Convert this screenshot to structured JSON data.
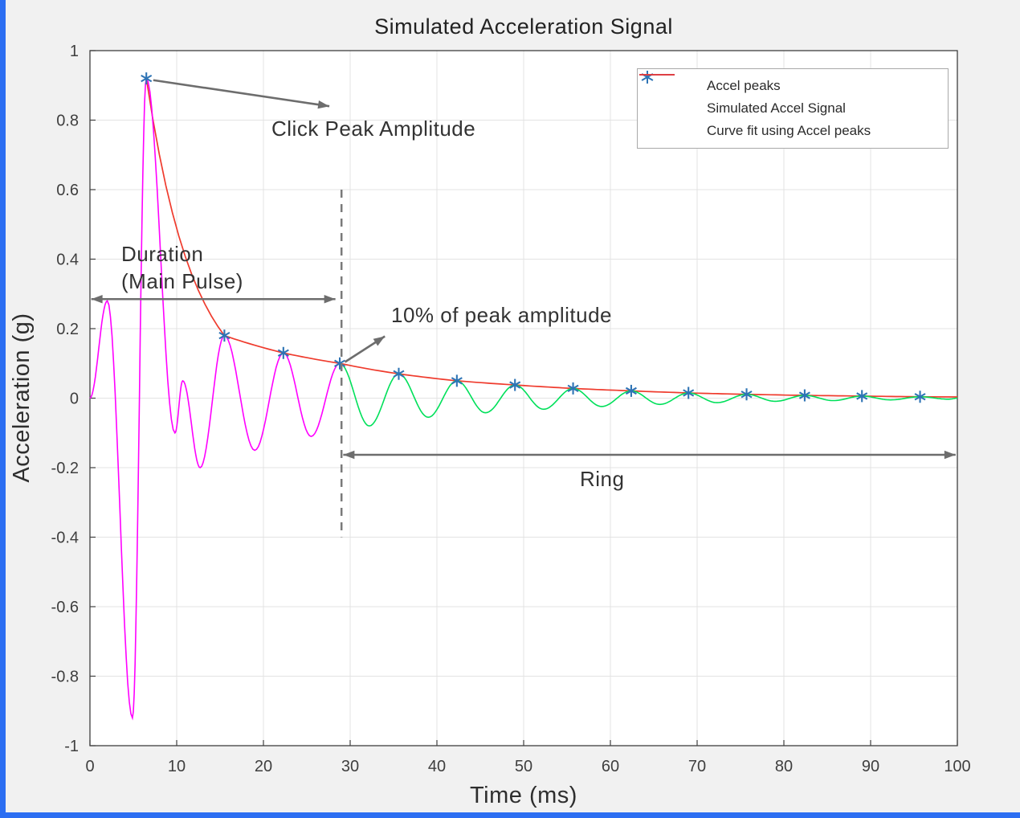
{
  "window": {
    "accent_color": "#2c6ef2"
  },
  "chart_data": {
    "type": "line",
    "title": "Simulated Acceleration Signal",
    "xlabel": "Time (ms)",
    "ylabel": "Acceleration (g)",
    "xlim": [
      0,
      100
    ],
    "ylim": [
      -1,
      1
    ],
    "grid": true,
    "xticks": [
      0,
      10,
      20,
      30,
      40,
      50,
      60,
      70,
      80,
      90,
      100
    ],
    "xtick_labels": [
      "0",
      "10",
      "20",
      "30",
      "40",
      "50",
      "60",
      "70",
      "80",
      "90",
      "100"
    ],
    "yticks": [
      -1,
      -0.8,
      -0.6,
      -0.4,
      -0.2,
      0,
      0.2,
      0.4,
      0.6,
      0.8,
      1
    ],
    "ytick_labels": [
      "-1",
      "-0.8",
      "-0.6",
      "-0.4",
      "-0.2",
      "0",
      "0.2",
      "0.4",
      "0.6",
      "0.8",
      "1"
    ],
    "colors": {
      "grid": "#e3e3e3",
      "axis": "#3f3f3f",
      "main_pulse": "#ff00ff",
      "ring": "#00e05a",
      "fit": "#ef3b2d",
      "peaks": "#2e74b5",
      "signal_legend": "#3535d8",
      "annotation": "#6d6d6d",
      "threshold_dash": "#7a7a7a"
    },
    "legend": {
      "position": "top-right",
      "entries": [
        {
          "label": "Accel peaks",
          "type": "marker",
          "color": "#2e74b5"
        },
        {
          "label": "Simulated Accel Signal",
          "type": "line",
          "color": "#3535d8"
        },
        {
          "label": "Curve fit using Accel peaks",
          "type": "line",
          "color": "#ef3b2d"
        }
      ]
    },
    "signal": {
      "split_time": 28.8,
      "extrema": [
        [
          0,
          0
        ],
        [
          2.0,
          0.28
        ],
        [
          4.9,
          -0.92
        ],
        [
          6.5,
          0.92
        ],
        [
          9.8,
          -0.1
        ],
        [
          10.7,
          0.05
        ],
        [
          12.7,
          -0.2
        ],
        [
          15.5,
          0.18
        ],
        [
          19.0,
          -0.15
        ],
        [
          22.3,
          0.13
        ],
        [
          25.5,
          -0.11
        ],
        [
          28.8,
          0.1
        ],
        [
          32.2,
          -0.08
        ],
        [
          35.6,
          0.07
        ],
        [
          39.0,
          -0.055
        ],
        [
          42.3,
          0.05
        ],
        [
          45.6,
          -0.042
        ],
        [
          49.0,
          0.038
        ],
        [
          52.3,
          -0.032
        ],
        [
          55.7,
          0.028
        ],
        [
          59.0,
          -0.024
        ],
        [
          62.4,
          0.021
        ],
        [
          65.7,
          -0.018
        ],
        [
          69.0,
          0.015
        ],
        [
          72.3,
          -0.013
        ],
        [
          75.7,
          0.011
        ],
        [
          79.0,
          -0.009
        ],
        [
          82.4,
          0.008
        ],
        [
          85.7,
          -0.007
        ],
        [
          89.0,
          0.006
        ],
        [
          92.3,
          -0.005
        ],
        [
          95.7,
          0.004
        ],
        [
          99.0,
          -0.003
        ],
        [
          100,
          0
        ]
      ]
    },
    "peaks": {
      "x": [
        6.5,
        15.5,
        22.3,
        28.8,
        35.6,
        42.3,
        49.0,
        55.7,
        62.4,
        69.0,
        75.7,
        82.4,
        89.0,
        95.7
      ],
      "y": [
        0.92,
        0.18,
        0.13,
        0.1,
        0.07,
        0.05,
        0.038,
        0.028,
        0.021,
        0.015,
        0.011,
        0.008,
        0.006,
        0.004
      ]
    },
    "fit": {
      "extend_to": 100,
      "end_value": 0.0035
    },
    "annotations": {
      "click_peak": {
        "text": "Click Peak Amplitude",
        "arrow": {
          "from": [
            7.3,
            0.915
          ],
          "to": [
            27.6,
            0.84
          ],
          "double": false
        }
      },
      "duration": {
        "text_line1": "Duration",
        "text_line2": "(Main Pulse)",
        "arrow": {
          "from": [
            0.15,
            0.285
          ],
          "to": [
            28.3,
            0.285
          ],
          "double": true
        }
      },
      "ten_percent": {
        "text": "10% of peak amplitude",
        "arrow": {
          "from": [
            29.4,
            0.104
          ],
          "to": [
            34.0,
            0.178
          ],
          "double": false
        }
      },
      "ring": {
        "text": "Ring",
        "arrow": {
          "from": [
            29.2,
            -0.163
          ],
          "to": [
            99.8,
            -0.163
          ],
          "double": true
        }
      },
      "threshold_line": {
        "x": 29,
        "y_top": 0.6,
        "y_bottom": -0.4
      }
    }
  }
}
